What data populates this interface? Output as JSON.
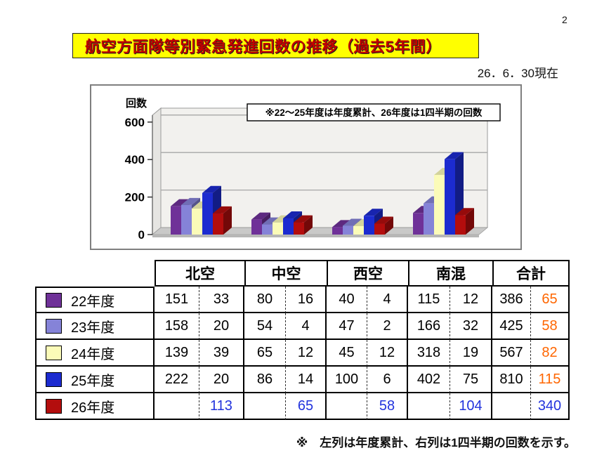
{
  "page": {
    "number": "2"
  },
  "header": {
    "title": "航空方面隊等別緊急発進回数の推移（過去5年間）",
    "date": "26．6．30現在"
  },
  "chart_data": {
    "type": "bar",
    "style": "3d-column",
    "ylabel": "回数",
    "yticks": [
      0,
      200,
      400,
      600
    ],
    "ylim": [
      0,
      600
    ],
    "grid": true,
    "note": "※22～25年度は年度累計、26年度は1四半期の回数",
    "categories": [
      "北空",
      "中空",
      "西空",
      "南混"
    ],
    "series": [
      {
        "name": "22年度",
        "color": "#6f3198",
        "values": [
          151,
          80,
          40,
          115
        ]
      },
      {
        "name": "23年度",
        "color": "#8583d8",
        "values": [
          158,
          54,
          47,
          166
        ]
      },
      {
        "name": "24年度",
        "color": "#fbfbb8",
        "values": [
          139,
          65,
          45,
          318
        ]
      },
      {
        "name": "25年度",
        "color": "#1c2bd0",
        "values": [
          222,
          86,
          100,
          402
        ]
      },
      {
        "name": "26年度",
        "color": "#b30d0d",
        "values": [
          113,
          65,
          58,
          104
        ]
      }
    ]
  },
  "table": {
    "column_groups": [
      "北空",
      "中空",
      "西空",
      "南混",
      "合計"
    ],
    "value_colors": {
      "k": "#000000",
      "o": "#ff6600",
      "b": "#2233dd"
    },
    "rows": [
      {
        "label": "22年度",
        "swatch": "#6f3198",
        "cells": [
          [
            "151",
            "k"
          ],
          [
            "33",
            "k"
          ],
          [
            "80",
            "k"
          ],
          [
            "16",
            "k"
          ],
          [
            "40",
            "k"
          ],
          [
            "4",
            "k"
          ],
          [
            "115",
            "k"
          ],
          [
            "12",
            "k"
          ],
          [
            "386",
            "k"
          ],
          [
            "65",
            "o"
          ]
        ]
      },
      {
        "label": "23年度",
        "swatch": "#8583d8",
        "cells": [
          [
            "158",
            "k"
          ],
          [
            "20",
            "k"
          ],
          [
            "54",
            "k"
          ],
          [
            "4",
            "k"
          ],
          [
            "47",
            "k"
          ],
          [
            "2",
            "k"
          ],
          [
            "166",
            "k"
          ],
          [
            "32",
            "k"
          ],
          [
            "425",
            "k"
          ],
          [
            "58",
            "o"
          ]
        ]
      },
      {
        "label": "24年度",
        "swatch": "#fbfbb8",
        "cells": [
          [
            "139",
            "k"
          ],
          [
            "39",
            "k"
          ],
          [
            "65",
            "k"
          ],
          [
            "12",
            "k"
          ],
          [
            "45",
            "k"
          ],
          [
            "12",
            "k"
          ],
          [
            "318",
            "k"
          ],
          [
            "19",
            "k"
          ],
          [
            "567",
            "k"
          ],
          [
            "82",
            "o"
          ]
        ]
      },
      {
        "label": "25年度",
        "swatch": "#1c2bd0",
        "cells": [
          [
            "222",
            "k"
          ],
          [
            "20",
            "k"
          ],
          [
            "86",
            "k"
          ],
          [
            "14",
            "k"
          ],
          [
            "100",
            "k"
          ],
          [
            "6",
            "k"
          ],
          [
            "402",
            "k"
          ],
          [
            "75",
            "k"
          ],
          [
            "810",
            "k"
          ],
          [
            "115",
            "o"
          ]
        ]
      },
      {
        "label": "26年度",
        "swatch": "#b30d0d",
        "cells": [
          [
            "",
            "k"
          ],
          [
            "113",
            "b"
          ],
          [
            "",
            "k"
          ],
          [
            "65",
            "b"
          ],
          [
            "",
            "k"
          ],
          [
            "58",
            "b"
          ],
          [
            "",
            "k"
          ],
          [
            "104",
            "b"
          ],
          [
            "",
            "k"
          ],
          [
            "340",
            "b"
          ]
        ]
      }
    ]
  },
  "footnote": {
    "text": "※　左列は年度累計、右列は1四半期の回数を示す。"
  }
}
